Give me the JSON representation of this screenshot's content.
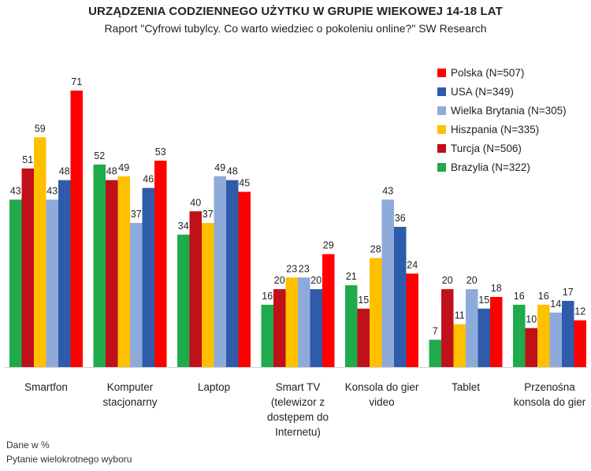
{
  "title": "URZĄDZENIA CODZIENNEGO UŻYTKU W GRUPIE WIEKOWEJ 14-18 LAT",
  "subtitle": "Raport \"Cyfrowi tubylcy. Co warto wiedziec o pokoleniu online?\" SW Research",
  "footnotes": {
    "line1": "Dane w %",
    "line2": "Pytanie wielokrotnego wyboru"
  },
  "chart_data": {
    "type": "bar",
    "title": "URZĄDZENIA CODZIENNEGO UŻYTKU W GRUPIE WIEKOWEJ 14-18 LAT",
    "xlabel": "",
    "ylabel": "",
    "ylim": [
      0,
      71
    ],
    "grid": false,
    "legend_position": "right",
    "categories": [
      [
        "Smartfon"
      ],
      [
        "Komputer",
        "stacjonarny"
      ],
      [
        "Laptop"
      ],
      [
        "Smart TV",
        "(telewizor z",
        "dostępem do",
        "Internetu)"
      ],
      [
        "Konsola do gier",
        "video"
      ],
      [
        "Tablet"
      ],
      [
        "Przenośna",
        "konsola do gier"
      ]
    ],
    "series": [
      {
        "name": "Brazylia (N=322)",
        "color": "#1faa4b",
        "values": [
          43,
          52,
          34,
          16,
          21,
          7,
          16
        ]
      },
      {
        "name": "Turcja (N=506)",
        "color": "#c0101a",
        "values": [
          51,
          48,
          40,
          20,
          15,
          20,
          10
        ]
      },
      {
        "name": "Hiszpania (N=335)",
        "color": "#ffc000",
        "values": [
          59,
          49,
          37,
          23,
          28,
          11,
          16
        ]
      },
      {
        "name": "Wielka Brytania (N=305)",
        "color": "#8eaadb",
        "values": [
          43,
          37,
          49,
          23,
          43,
          20,
          14
        ]
      },
      {
        "name": "USA (N=349)",
        "color": "#2e5caa",
        "values": [
          48,
          46,
          48,
          20,
          36,
          15,
          17
        ]
      },
      {
        "name": "Polska (N=507)",
        "color": "#ff0000",
        "values": [
          71,
          53,
          45,
          29,
          24,
          18,
          12
        ]
      }
    ],
    "legend_order": [
      5,
      4,
      3,
      2,
      1,
      0
    ]
  }
}
